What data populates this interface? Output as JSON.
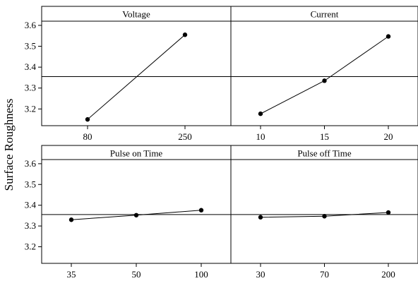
{
  "chart_data": {
    "type": "line",
    "ylabel": "Surface Roughness",
    "ylim": [
      3.12,
      3.62
    ],
    "yticks": [
      "3.2",
      "3.3",
      "3.4",
      "3.5",
      "3.6"
    ],
    "reference_line": 3.355,
    "grid": false,
    "colors": {
      "line": "#000000",
      "background": "#ffffff"
    },
    "panels": [
      {
        "title": "Voltage",
        "x": [
          "80",
          "250"
        ],
        "values": [
          3.15,
          3.555
        ]
      },
      {
        "title": "Current",
        "x": [
          "10",
          "15",
          "20"
        ],
        "values": [
          3.177,
          3.335,
          3.547
        ]
      },
      {
        "title": "Pulse on Time",
        "x": [
          "35",
          "50",
          "100"
        ],
        "values": [
          3.33,
          3.352,
          3.376
        ]
      },
      {
        "title": "Pulse off Time",
        "x": [
          "30",
          "70",
          "200"
        ],
        "values": [
          3.342,
          3.347,
          3.365
        ]
      }
    ]
  }
}
